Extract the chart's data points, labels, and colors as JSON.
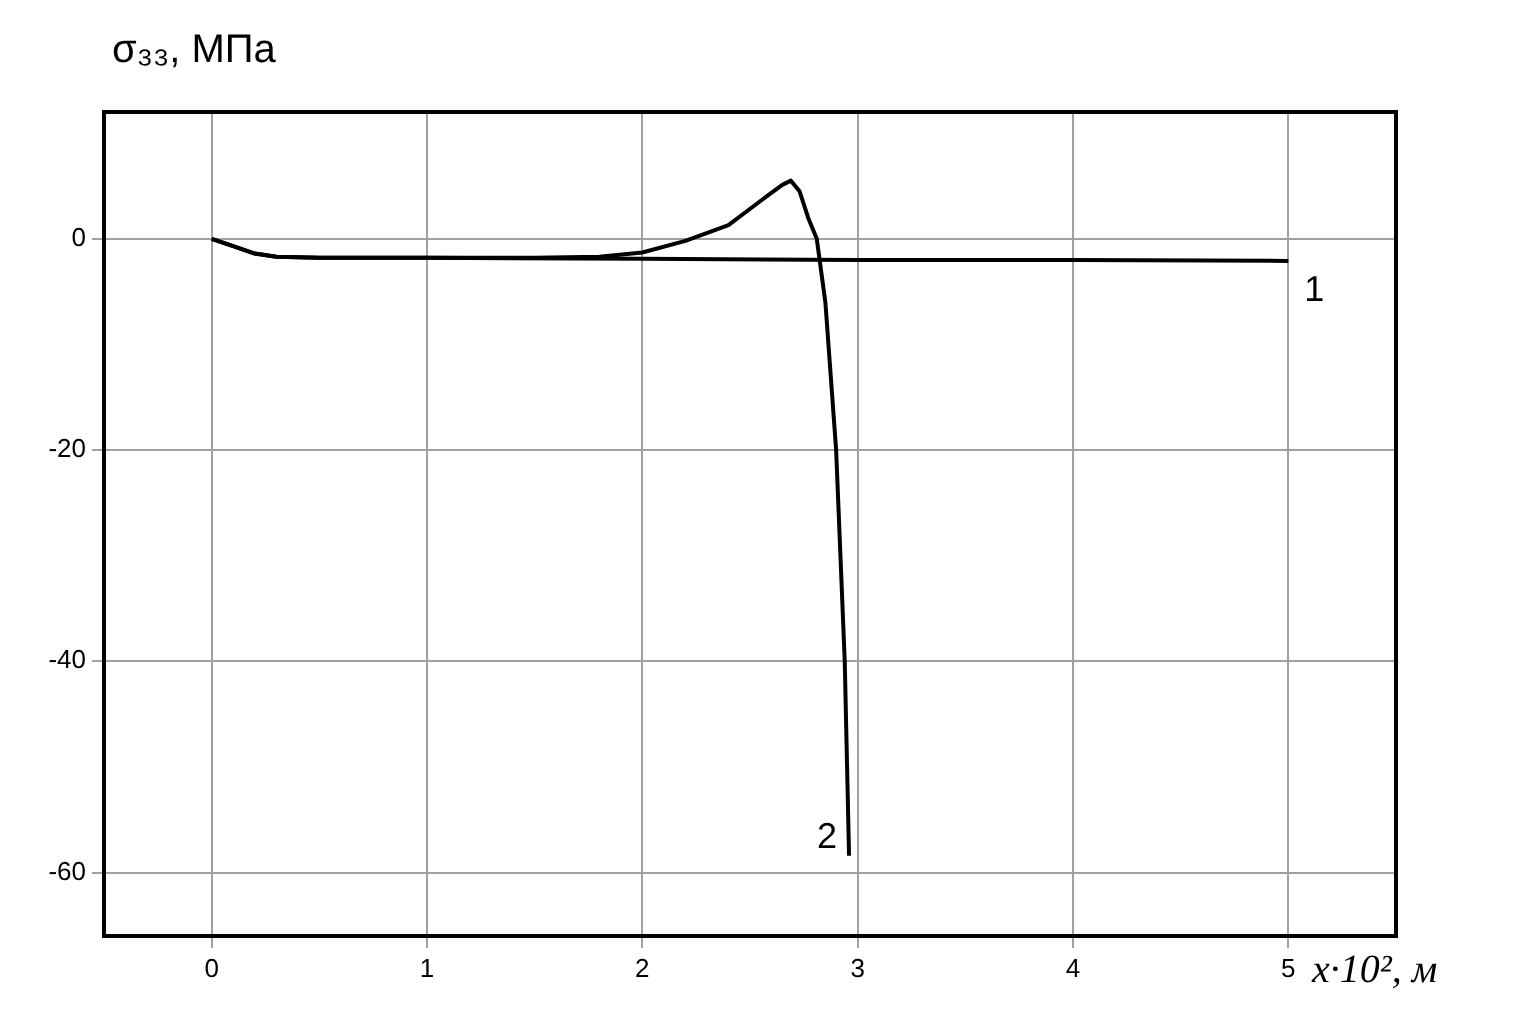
{
  "chart_data": {
    "type": "line",
    "xlabel": "x·10², м",
    "ylabel": "σ₃₃, МПа",
    "xlim": [
      -0.5,
      5.5
    ],
    "xticks": [
      0,
      1,
      2,
      3,
      4,
      5
    ],
    "ylim": [
      -66,
      12
    ],
    "yticks": [
      0,
      -20,
      -40,
      -60
    ],
    "grid": true,
    "legend": false,
    "marker": "none",
    "line_style": "solid",
    "series": [
      {
        "name": "1",
        "color": "#000000",
        "x": [
          0,
          0.1,
          0.2,
          0.3,
          0.5,
          1,
          2,
          3,
          4,
          5
        ],
        "values": [
          0,
          -0.7,
          -1.4,
          -1.7,
          -1.8,
          -1.8,
          -1.9,
          -2,
          -2,
          -2.1
        ]
      },
      {
        "name": "2",
        "color": "#000000",
        "x": [
          0,
          0.1,
          0.2,
          0.3,
          0.5,
          1,
          1.5,
          1.8,
          2,
          2.2,
          2.4,
          2.55,
          2.65,
          2.69,
          2.73,
          2.77,
          2.81,
          2.85,
          2.9,
          2.94,
          2.96
        ],
        "values": [
          0,
          -0.7,
          -1.4,
          -1.7,
          -1.8,
          -1.8,
          -1.8,
          -1.7,
          -1.3,
          -0.2,
          1.3,
          3.6,
          5.1,
          5.5,
          4.5,
          2,
          0,
          -6,
          -20,
          -40,
          -58.4
        ]
      }
    ]
  }
}
